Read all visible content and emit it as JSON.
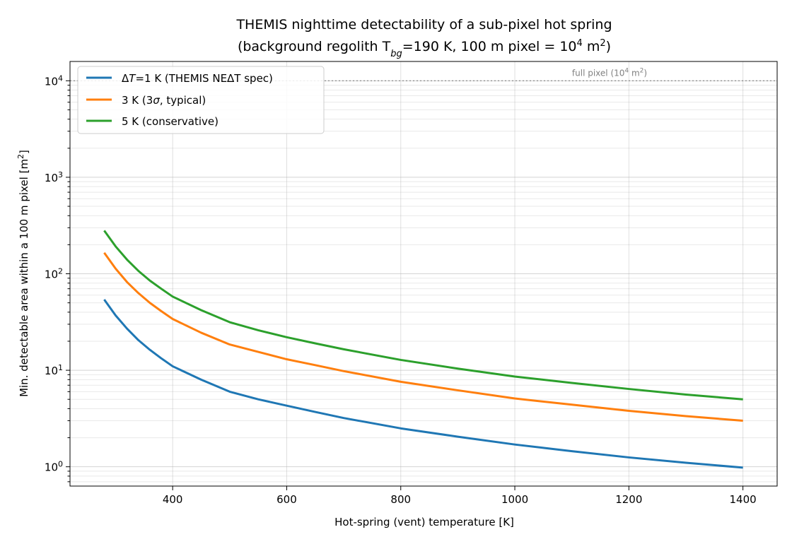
{
  "chart_data": {
    "type": "line",
    "title_line1": "THEMIS nighttime detectability of a sub-pixel hot spring",
    "title_line2": {
      "before": "(background regolith T",
      "sub": "bg",
      "middle": "=190 K, 100 m pixel = 10",
      "sup": "4",
      "unit": " m",
      "unit_sup": "2",
      "after": ")"
    },
    "xlabel": "Hot-spring (vent) temperature  [K]",
    "ylabel": {
      "text": "Min. detectable area within a 100 m pixel  [m",
      "sup": "2",
      "after": "]"
    },
    "xlim": [
      220,
      1460
    ],
    "ylim_log10": [
      -0.2,
      4.2
    ],
    "y_scale": "log",
    "grid": true,
    "x_ticks": [
      400,
      600,
      800,
      1000,
      1200,
      1400
    ],
    "y_ticks": [
      {
        "value": 1,
        "base": "10",
        "exp": "0"
      },
      {
        "value": 10,
        "base": "10",
        "exp": "1"
      },
      {
        "value": 100,
        "base": "10",
        "exp": "2"
      },
      {
        "value": 1000,
        "base": "10",
        "exp": "3"
      },
      {
        "value": 10000,
        "base": "10",
        "exp": "4"
      }
    ],
    "legend_position": "top-left",
    "series": [
      {
        "name_parts": {
          "a": "Δ",
          "b": "T",
          "c": "=1 K (THEMIS NEΔT spec)"
        },
        "color": "#1f77b4",
        "x": [
          280,
          300,
          320,
          340,
          360,
          380,
          400,
          450,
          500,
          550,
          600,
          650,
          700,
          800,
          900,
          1000,
          1100,
          1200,
          1300,
          1400
        ],
        "y": [
          54,
          37,
          27,
          20.5,
          16.3,
          13.3,
          11.0,
          8.0,
          6.0,
          5.0,
          4.3,
          3.7,
          3.2,
          2.5,
          2.05,
          1.7,
          1.45,
          1.25,
          1.1,
          0.98
        ]
      },
      {
        "name_parts": {
          "a": "3 K (3",
          "b": "σ",
          "c": ", typical)"
        },
        "color": "#ff7f0e",
        "x": [
          280,
          300,
          320,
          340,
          360,
          380,
          400,
          450,
          500,
          550,
          600,
          650,
          700,
          800,
          900,
          1000,
          1100,
          1200,
          1300,
          1400
        ],
        "y": [
          165,
          113,
          82,
          63,
          50,
          41,
          34,
          24.5,
          18.5,
          15.5,
          13.0,
          11.3,
          9.8,
          7.6,
          6.2,
          5.1,
          4.4,
          3.8,
          3.35,
          3.0
        ]
      },
      {
        "name_parts": {
          "a": "5 K (conservative)",
          "b": "",
          "c": ""
        },
        "color": "#2ca02c",
        "x": [
          280,
          300,
          320,
          340,
          360,
          380,
          400,
          450,
          500,
          550,
          600,
          650,
          700,
          800,
          900,
          1000,
          1100,
          1200,
          1300,
          1400
        ],
        "y": [
          280,
          192,
          140,
          107,
          85,
          70,
          58,
          42,
          31.5,
          26,
          22,
          19,
          16.5,
          12.8,
          10.4,
          8.6,
          7.4,
          6.4,
          5.6,
          5.0
        ]
      }
    ],
    "reference_line": {
      "value": 10000,
      "label_parts": {
        "a": "full pixel (10",
        "sup": "4",
        "b": " m",
        "sup2": "2",
        "c": ")"
      },
      "color": "#808080"
    }
  }
}
